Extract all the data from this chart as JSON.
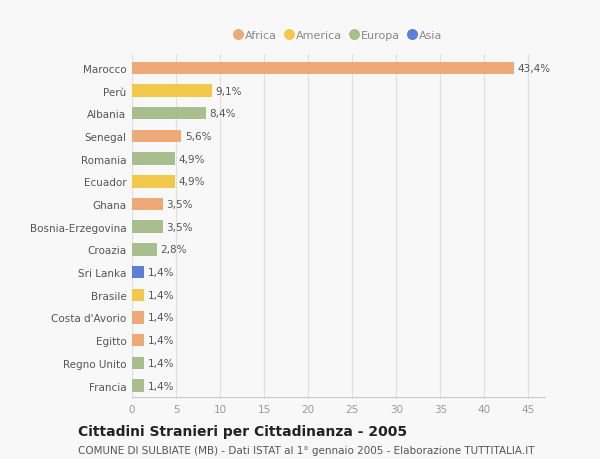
{
  "countries": [
    "Marocco",
    "Perù",
    "Albania",
    "Senegal",
    "Romania",
    "Ecuador",
    "Ghana",
    "Bosnia-Erzegovina",
    "Croazia",
    "Sri Lanka",
    "Brasile",
    "Costa d'Avorio",
    "Egitto",
    "Regno Unito",
    "Francia"
  ],
  "values": [
    43.4,
    9.1,
    8.4,
    5.6,
    4.9,
    4.9,
    3.5,
    3.5,
    2.8,
    1.4,
    1.4,
    1.4,
    1.4,
    1.4,
    1.4
  ],
  "labels": [
    "43,4%",
    "9,1%",
    "8,4%",
    "5,6%",
    "4,9%",
    "4,9%",
    "3,5%",
    "3,5%",
    "2,8%",
    "1,4%",
    "1,4%",
    "1,4%",
    "1,4%",
    "1,4%",
    "1,4%"
  ],
  "continents": [
    "Africa",
    "America",
    "Europa",
    "Africa",
    "Europa",
    "America",
    "Africa",
    "Europa",
    "Europa",
    "Asia",
    "America",
    "Africa",
    "Africa",
    "Europa",
    "Europa"
  ],
  "continent_colors": {
    "Africa": "#EDAA78",
    "America": "#F2C84B",
    "Europa": "#A8BE8C",
    "Asia": "#5B7FD4"
  },
  "legend_order": [
    "Africa",
    "America",
    "Europa",
    "Asia"
  ],
  "xlim": [
    0,
    47
  ],
  "xticks": [
    0,
    5,
    10,
    15,
    20,
    25,
    30,
    35,
    40,
    45
  ],
  "title": "Cittadini Stranieri per Cittadinanza - 2005",
  "subtitle": "COMUNE DI SULBIATE (MB) - Dati ISTAT al 1° gennaio 2005 - Elaborazione TUTTITALIA.IT",
  "background_color": "#f8f8f8",
  "bar_height": 0.55,
  "label_fontsize": 7.5,
  "tick_fontsize": 7.5,
  "title_fontsize": 10,
  "subtitle_fontsize": 7.5
}
